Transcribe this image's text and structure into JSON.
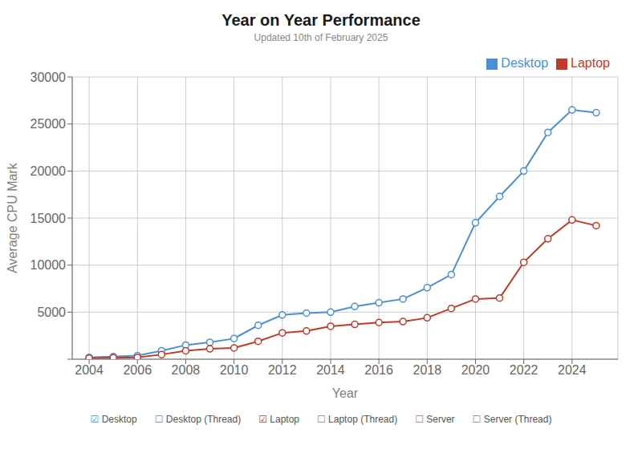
{
  "chart_data": {
    "type": "line",
    "title": "Year on Year Performance",
    "subtitle": "Updated 10th of February 2025",
    "x_label": "Year",
    "y_label": "Average CPU Mark",
    "x": [
      2004,
      2005,
      2006,
      2007,
      2008,
      2009,
      2010,
      2011,
      2012,
      2013,
      2014,
      2015,
      2016,
      2017,
      2018,
      2019,
      2020,
      2021,
      2022,
      2023,
      2024,
      2025
    ],
    "series": [
      {
        "name": "Desktop",
        "color": "#4a90d9",
        "marker": "circle",
        "line_style": "solid",
        "values": [
          200,
          280,
          380,
          900,
          1500,
          1800,
          2200,
          3600,
          4700,
          4900,
          5000,
          5600,
          6000,
          6400,
          7600,
          9000,
          14500,
          17300,
          20000,
          24100,
          26500,
          26200
        ]
      },
      {
        "name": "Laptop",
        "color": "#c0392b",
        "marker": "circle",
        "line_style": "solid",
        "values": [
          100,
          150,
          200,
          500,
          900,
          1100,
          1200,
          1900,
          2800,
          3000,
          3500,
          3700,
          3900,
          4000,
          4400,
          5400,
          6400,
          6500,
          10300,
          12800,
          14800,
          14200
        ]
      }
    ],
    "xlim": [
      2003.3,
      2025.9
    ],
    "xticks": [
      2004,
      2006,
      2008,
      2010,
      2012,
      2014,
      2016,
      2018,
      2020,
      2022,
      2024
    ],
    "ylim": [
      0,
      30000
    ],
    "yticks": [
      {
        "value": 0,
        "label": ""
      },
      5000,
      10000,
      15000,
      20000,
      25000,
      30000
    ],
    "grid": true,
    "legend": "top-right",
    "annotations": [
      {
        "text": "☑ Desktop",
        "color": "#4a90d9"
      },
      {
        "text": "☐ Desktop (Thread)",
        "color": "#888888"
      },
      {
        "text": "☑ Laptop",
        "color": "#c0392b"
      },
      {
        "text": "☐ Laptop (Thread)",
        "color": "#888888"
      },
      {
        "text": "☐ Server",
        "color": "#888888"
      },
      {
        "text": "☐ Server (Thread)",
        "color": "#888888"
      }
    ]
  }
}
